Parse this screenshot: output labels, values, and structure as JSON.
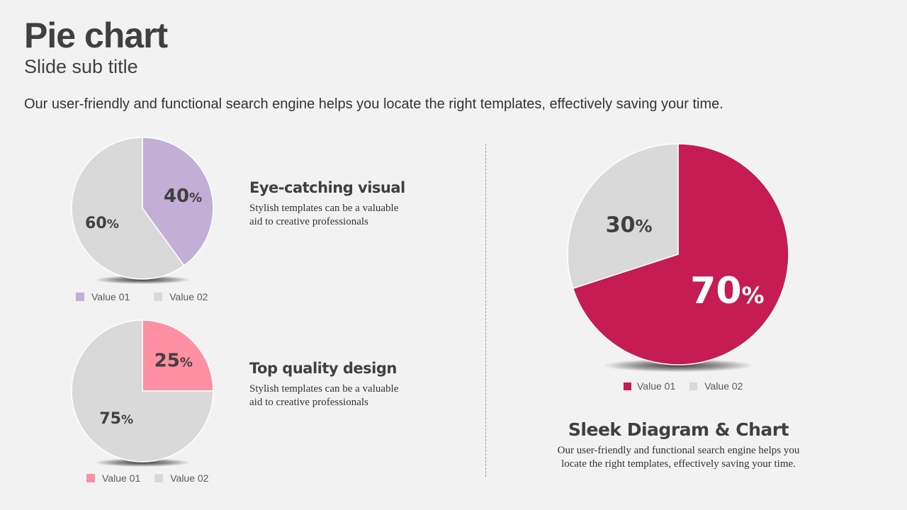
{
  "slide": {
    "title": "Pie chart",
    "subtitle": "Slide sub title",
    "intro": "Our user-friendly and functional search engine helps you locate the right templates, effectively saving your time."
  },
  "features": [
    {
      "title": "Eye-catching visual",
      "text_line1": "Stylish templates can be a valuable",
      "text_line2": "aid to creative professionals"
    },
    {
      "title": "Top quality design",
      "text_line1": "Stylish templates can be a valuable",
      "text_line2": "aid to creative professionals"
    }
  ],
  "big_section": {
    "title": "Sleek Diagram & Chart",
    "text_line1": "Our user-friendly and functional search engine helps you",
    "text_line2": "locate the right templates, effectively saving your time."
  },
  "colors": {
    "background": "#f2f2f2",
    "neutral_slice": "#d9d9d9",
    "pie1_accent": "#c3aed6",
    "pie2_accent": "#ff8fa3",
    "pie3_accent": "#c51c54"
  },
  "chart_data": [
    {
      "type": "pie",
      "title": "",
      "legend": "bottom",
      "series": [
        {
          "name": "Value 01",
          "value": 40,
          "label": "40",
          "unit": "%"
        },
        {
          "name": "Value 02",
          "value": 60,
          "label": "60",
          "unit": "%"
        }
      ]
    },
    {
      "type": "pie",
      "title": "",
      "legend": "bottom",
      "series": [
        {
          "name": "Value 01",
          "value": 25,
          "label": "25",
          "unit": "%"
        },
        {
          "name": "Value 02",
          "value": 75,
          "label": "75",
          "unit": "%"
        }
      ]
    },
    {
      "type": "pie",
      "title": "",
      "legend": "bottom",
      "series": [
        {
          "name": "Value 01",
          "value": 70,
          "label": "70",
          "unit": "%"
        },
        {
          "name": "Value 02",
          "value": 30,
          "label": "30",
          "unit": "%"
        }
      ]
    }
  ]
}
